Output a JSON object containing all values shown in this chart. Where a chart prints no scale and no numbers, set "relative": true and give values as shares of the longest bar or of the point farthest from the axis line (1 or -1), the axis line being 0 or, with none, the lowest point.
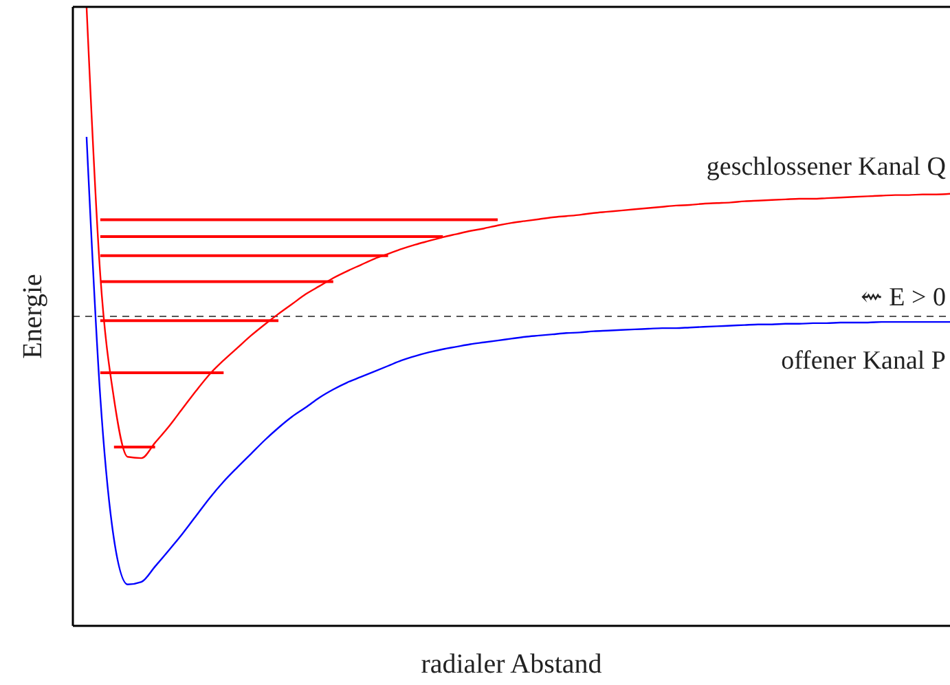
{
  "chart_data": {
    "type": "line",
    "relative": true,
    "xlabel": "radialer Abstand",
    "ylabel": "Energie",
    "grid": false,
    "categories": [
      null,
      null,
      null,
      null,
      null,
      null,
      null,
      null,
      null,
      null,
      null,
      null,
      null,
      null,
      null,
      null,
      null,
      null,
      null,
      null,
      null,
      null,
      null,
      null,
      null,
      null,
      null,
      null,
      null,
      null,
      null,
      null,
      null,
      null,
      null,
      null,
      null,
      null,
      null,
      null,
      null,
      null,
      null,
      null,
      null,
      null,
      null,
      null,
      null,
      null,
      null,
      null,
      null,
      null,
      null,
      null,
      null,
      null,
      null,
      null,
      null,
      null,
      null,
      null,
      null
    ],
    "ref_lines": [
      {
        "axis": "y",
        "value": 0.5,
        "label": "⇜ E > 0",
        "color": "#555555",
        "line_style": "dashed"
      }
    ],
    "series": [
      {
        "name": "offener Kanal P",
        "color": "#0000ff",
        "values": [
          null,
          0.79,
          0.37,
          0.14,
          0.067,
          0.071,
          0.096,
          0.122,
          0.149,
          0.178,
          0.207,
          0.233,
          0.256,
          0.278,
          0.3,
          0.32,
          0.338,
          0.353,
          0.369,
          0.382,
          0.393,
          0.402,
          0.411,
          0.42,
          0.429,
          0.436,
          0.442,
          0.447,
          0.451,
          0.455,
          0.458,
          0.461,
          0.464,
          0.467,
          0.469,
          0.471,
          0.473,
          0.474,
          0.476,
          0.477,
          0.478,
          0.479,
          0.48,
          0.481,
          0.481,
          0.482,
          0.483,
          0.484,
          0.485,
          0.486,
          0.487,
          0.487,
          0.488,
          0.488,
          0.489,
          0.489,
          0.49,
          0.49,
          0.49,
          0.491,
          0.491,
          0.491,
          0.491,
          0.491,
          0.491
        ]
      },
      {
        "name": "geschlossener Kanal Q",
        "color": "#ff0000",
        "values": [
          null,
          1,
          0.567,
          0.367,
          0.273,
          0.271,
          0.296,
          0.322,
          0.351,
          0.38,
          0.407,
          0.429,
          0.449,
          0.469,
          0.487,
          0.504,
          0.52,
          0.536,
          0.549,
          0.562,
          0.573,
          0.583,
          0.593,
          0.601,
          0.609,
          0.616,
          0.622,
          0.628,
          0.633,
          0.638,
          0.642,
          0.647,
          0.651,
          0.654,
          0.657,
          0.66,
          0.662,
          0.664,
          0.667,
          0.669,
          0.671,
          0.673,
          0.675,
          0.677,
          0.679,
          0.68,
          0.682,
          0.683,
          0.684,
          0.686,
          0.687,
          0.688,
          0.689,
          0.69,
          0.69,
          0.691,
          0.692,
          0.693,
          0.694,
          0.695,
          0.696,
          0.696,
          0.697,
          0.697,
          0.698
        ]
      },
      {
        "color": "#ff0000",
        "values": [
          null,
          null,
          null,
          0.289,
          0.289,
          0.289,
          0.289,
          null,
          null,
          null,
          null,
          null,
          null,
          null,
          null,
          null,
          null,
          null,
          null,
          null,
          null,
          null,
          null,
          null,
          null,
          null,
          null,
          null,
          null,
          null,
          null,
          null,
          null,
          null,
          null,
          null,
          null,
          null,
          null,
          null,
          null,
          null,
          null,
          null,
          null,
          null,
          null,
          null,
          null,
          null,
          null,
          null,
          null,
          null,
          null,
          null,
          null,
          null,
          null,
          null,
          null,
          null,
          null,
          null,
          null
        ]
      },
      {
        "color": "#ff0000",
        "values": [
          null,
          null,
          0.409,
          0.409,
          0.409,
          0.409,
          0.409,
          0.409,
          0.409,
          0.409,
          0.409,
          0.409,
          null,
          null,
          null,
          null,
          null,
          null,
          null,
          null,
          null,
          null,
          null,
          null,
          null,
          null,
          null,
          null,
          null,
          null,
          null,
          null,
          null,
          null,
          null,
          null,
          null,
          null,
          null,
          null,
          null,
          null,
          null,
          null,
          null,
          null,
          null,
          null,
          null,
          null,
          null,
          null,
          null,
          null,
          null,
          null,
          null,
          null,
          null,
          null,
          null,
          null,
          null,
          null,
          null
        ]
      },
      {
        "color": "#ff0000",
        "values": [
          null,
          null,
          0.493,
          0.493,
          0.493,
          0.493,
          0.493,
          0.493,
          0.493,
          0.493,
          0.493,
          0.493,
          0.493,
          0.493,
          0.493,
          0.493,
          null,
          null,
          null,
          null,
          null,
          null,
          null,
          null,
          null,
          null,
          null,
          null,
          null,
          null,
          null,
          null,
          null,
          null,
          null,
          null,
          null,
          null,
          null,
          null,
          null,
          null,
          null,
          null,
          null,
          null,
          null,
          null,
          null,
          null,
          null,
          null,
          null,
          null,
          null,
          null,
          null,
          null,
          null,
          null,
          null,
          null,
          null,
          null,
          null
        ]
      },
      {
        "color": "#ff0000",
        "values": [
          null,
          null,
          0.556,
          0.556,
          0.556,
          0.556,
          0.556,
          0.556,
          0.556,
          0.556,
          0.556,
          0.556,
          0.556,
          0.556,
          0.556,
          0.556,
          0.556,
          0.556,
          0.556,
          0.556,
          null,
          null,
          null,
          null,
          null,
          null,
          null,
          null,
          null,
          null,
          null,
          null,
          null,
          null,
          null,
          null,
          null,
          null,
          null,
          null,
          null,
          null,
          null,
          null,
          null,
          null,
          null,
          null,
          null,
          null,
          null,
          null,
          null,
          null,
          null,
          null,
          null,
          null,
          null,
          null,
          null,
          null,
          null,
          null,
          null
        ]
      },
      {
        "color": "#ff0000",
        "values": [
          null,
          null,
          0.598,
          0.598,
          0.598,
          0.598,
          0.598,
          0.598,
          0.598,
          0.598,
          0.598,
          0.598,
          0.598,
          0.598,
          0.598,
          0.598,
          0.598,
          0.598,
          0.598,
          0.598,
          0.598,
          0.598,
          0.598,
          0.598,
          null,
          null,
          null,
          null,
          null,
          null,
          null,
          null,
          null,
          null,
          null,
          null,
          null,
          null,
          null,
          null,
          null,
          null,
          null,
          null,
          null,
          null,
          null,
          null,
          null,
          null,
          null,
          null,
          null,
          null,
          null,
          null,
          null,
          null,
          null,
          null,
          null,
          null,
          null,
          null,
          null
        ]
      },
      {
        "color": "#ff0000",
        "values": [
          null,
          null,
          0.629,
          0.629,
          0.629,
          0.629,
          0.629,
          0.629,
          0.629,
          0.629,
          0.629,
          0.629,
          0.629,
          0.629,
          0.629,
          0.629,
          0.629,
          0.629,
          0.629,
          0.629,
          0.629,
          0.629,
          0.629,
          0.629,
          0.629,
          0.629,
          0.629,
          0.629,
          null,
          null,
          null,
          null,
          null,
          null,
          null,
          null,
          null,
          null,
          null,
          null,
          null,
          null,
          null,
          null,
          null,
          null,
          null,
          null,
          null,
          null,
          null,
          null,
          null,
          null,
          null,
          null,
          null,
          null,
          null,
          null,
          null,
          null,
          null,
          null,
          null
        ]
      },
      {
        "color": "#ff0000",
        "values": [
          null,
          null,
          0.656,
          0.656,
          0.656,
          0.656,
          0.656,
          0.656,
          0.656,
          0.656,
          0.656,
          0.656,
          0.656,
          0.656,
          0.656,
          0.656,
          0.656,
          0.656,
          0.656,
          0.656,
          0.656,
          0.656,
          0.656,
          0.656,
          0.656,
          0.656,
          0.656,
          0.656,
          0.656,
          0.656,
          0.656,
          0.656,
          null,
          null,
          null,
          null,
          null,
          null,
          null,
          null,
          null,
          null,
          null,
          null,
          null,
          null,
          null,
          null,
          null,
          null,
          null,
          null,
          null,
          null,
          null,
          null,
          null,
          null,
          null,
          null,
          null,
          null,
          null,
          null,
          null
        ]
      }
    ]
  }
}
